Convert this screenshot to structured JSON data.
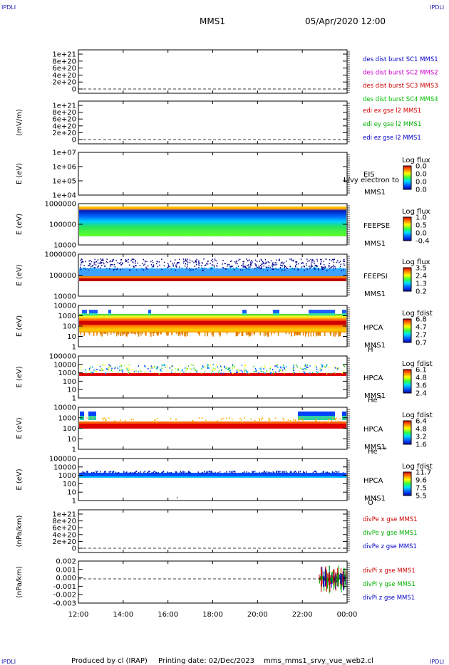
{
  "header": {
    "corner_tl": "IPDLI",
    "corner_tr": "IPDLI",
    "corner_bl": "IPDLI",
    "corner_br": "IPDLI",
    "spacecraft": "MMS1",
    "datetime": "05/Apr/2020 12:00"
  },
  "footer": {
    "produced": "Produced by cl (IRAP)",
    "printing": "Printing date: 02/Dec/2023",
    "script": "mms_mms1_srvy_vue_web2.cl"
  },
  "chart_data": {
    "type": "multi-panel",
    "x_ticks": [
      "12:00",
      "14:00",
      "16:00",
      "18:00",
      "20:00",
      "22:00",
      "00:00"
    ],
    "panels": [
      {
        "id": "des-dist",
        "kind": "line",
        "ylabel": "",
        "yticks": [
          "1e+21",
          "8e+20",
          "6e+20",
          "4e+20",
          "2e+20",
          "0"
        ],
        "legend": [
          {
            "text": "des dist burst SC1 MMS1",
            "color": "#0000c8"
          },
          {
            "text": "des dist burst SC2 MMS2",
            "color": "#d000d0"
          },
          {
            "text": "des dist burst SC3 MMS3",
            "color": "#d00000"
          },
          {
            "text": "des dist burst SC4 MMS4",
            "color": "#00c000"
          }
        ],
        "dashed_zero": true
      },
      {
        "id": "edi",
        "kind": "line",
        "ylabel": "(mV/m)",
        "yticks": [
          "1e+21",
          "8e+20",
          "6e+20",
          "4e+20",
          "2e+20",
          "0"
        ],
        "legend": [
          {
            "text": "edi ex gse l2 MMS1",
            "color": "#d00000"
          },
          {
            "text": "edi ey gse l2 MMS1",
            "color": "#00b000"
          },
          {
            "text": "edi ez gse l2 MMS1",
            "color": "#0000c8"
          }
        ],
        "dashed_zero": true
      },
      {
        "id": "eis",
        "kind": "spectrogram",
        "ylabel": "E (eV)",
        "yticks": [
          "1e+07",
          "1e+06",
          "1e+05",
          "1e+04"
        ],
        "instrument": [
          "EIS",
          "MMS1"
        ],
        "overlay_text": "L/vy electron to",
        "colorbar": {
          "title": "Log flux",
          "ticks": [
            "0.0",
            "0.0",
            "0.0",
            "0.0"
          ]
        }
      },
      {
        "id": "feeps-e",
        "kind": "spectrogram",
        "ylabel": "E (eV)",
        "yticks": [
          "1000000",
          "100000",
          "10000"
        ],
        "instrument": [
          "FEEPSE",
          "MMS1"
        ],
        "colorbar": {
          "title": "Log flux",
          "ticks": [
            "1.0",
            "0.5",
            "0.0",
            "-0.4"
          ]
        }
      },
      {
        "id": "feeps-i",
        "kind": "spectrogram",
        "ylabel": "E (eV)",
        "yticks": [
          "1000000",
          "100000",
          "10000"
        ],
        "instrument": [
          "FEEPSI",
          "MMS1"
        ],
        "colorbar": {
          "title": "Log flux",
          "ticks": [
            "3.5",
            "2.4",
            "1.3",
            "0.2"
          ]
        }
      },
      {
        "id": "hpca-h",
        "kind": "spectrogram",
        "ylabel": "E (eV)",
        "yticks": [
          "10000",
          "1000",
          "100",
          "10",
          "1"
        ],
        "instrument": [
          "HPCA",
          "MMS1"
        ],
        "species": "H",
        "charge": "+",
        "colorbar": {
          "title": "Log fdist",
          "ticks": [
            "6.8",
            "4.7",
            "2.7",
            "0.7"
          ]
        }
      },
      {
        "id": "hpca-he",
        "kind": "spectrogram",
        "ylabel": "E (eV)",
        "yticks": [
          "100000",
          "10000",
          "1000",
          "100",
          "10",
          "1"
        ],
        "instrument": [
          "HPCA",
          "MMS1"
        ],
        "species": "He",
        "charge": "+",
        "colorbar": {
          "title": "Log fdist",
          "ticks": [
            "6.1",
            "4.8",
            "3.6",
            "2.4"
          ]
        }
      },
      {
        "id": "hpca-he2",
        "kind": "spectrogram",
        "ylabel": "E (eV)",
        "yticks": [
          "10000",
          "1000",
          "100",
          "10",
          "1"
        ],
        "instrument": [
          "HPCA",
          "MMS1"
        ],
        "species": "He",
        "charge": "++",
        "colorbar": {
          "title": "Log fdist",
          "ticks": [
            "6.4",
            "4.8",
            "3.2",
            "1.6"
          ]
        }
      },
      {
        "id": "hpca-o",
        "kind": "spectrogram",
        "ylabel": "E (eV)",
        "yticks": [
          "100000",
          "10000",
          "1000",
          "100",
          "10",
          "1"
        ],
        "instrument": [
          "HPCA",
          "MMS1"
        ],
        "species": "O",
        "charge": "+",
        "colorbar": {
          "title": "Log fdist",
          "ticks": [
            "11.7",
            "9.6",
            "7.5",
            "5.5"
          ]
        }
      },
      {
        "id": "divpe",
        "kind": "line",
        "ylabel": "(nPa/km)",
        "yticks": [
          "1e+21",
          "8e+20",
          "6e+20",
          "4e+20",
          "2e+20",
          "0"
        ],
        "legend": [
          {
            "text": "divPe x gse MMS1",
            "color": "#d00000"
          },
          {
            "text": "divPe y gse MMS1",
            "color": "#00b000"
          },
          {
            "text": "divPe z gse MMS1",
            "color": "#0000c8"
          }
        ],
        "dashed_zero": true
      },
      {
        "id": "divpi",
        "kind": "line",
        "ylabel": "(nPa/km)",
        "yticks": [
          "0.002",
          "0.001",
          "0.000",
          "-0.001",
          "-0.002",
          "-0.003"
        ],
        "legend": [
          {
            "text": "divPi x gse MMS1",
            "color": "#d00000"
          },
          {
            "text": "divPi y gse MMS1",
            "color": "#00b000"
          },
          {
            "text": "divPi z gse MMS1",
            "color": "#0000c8"
          }
        ],
        "dashed_zero": true
      }
    ]
  }
}
